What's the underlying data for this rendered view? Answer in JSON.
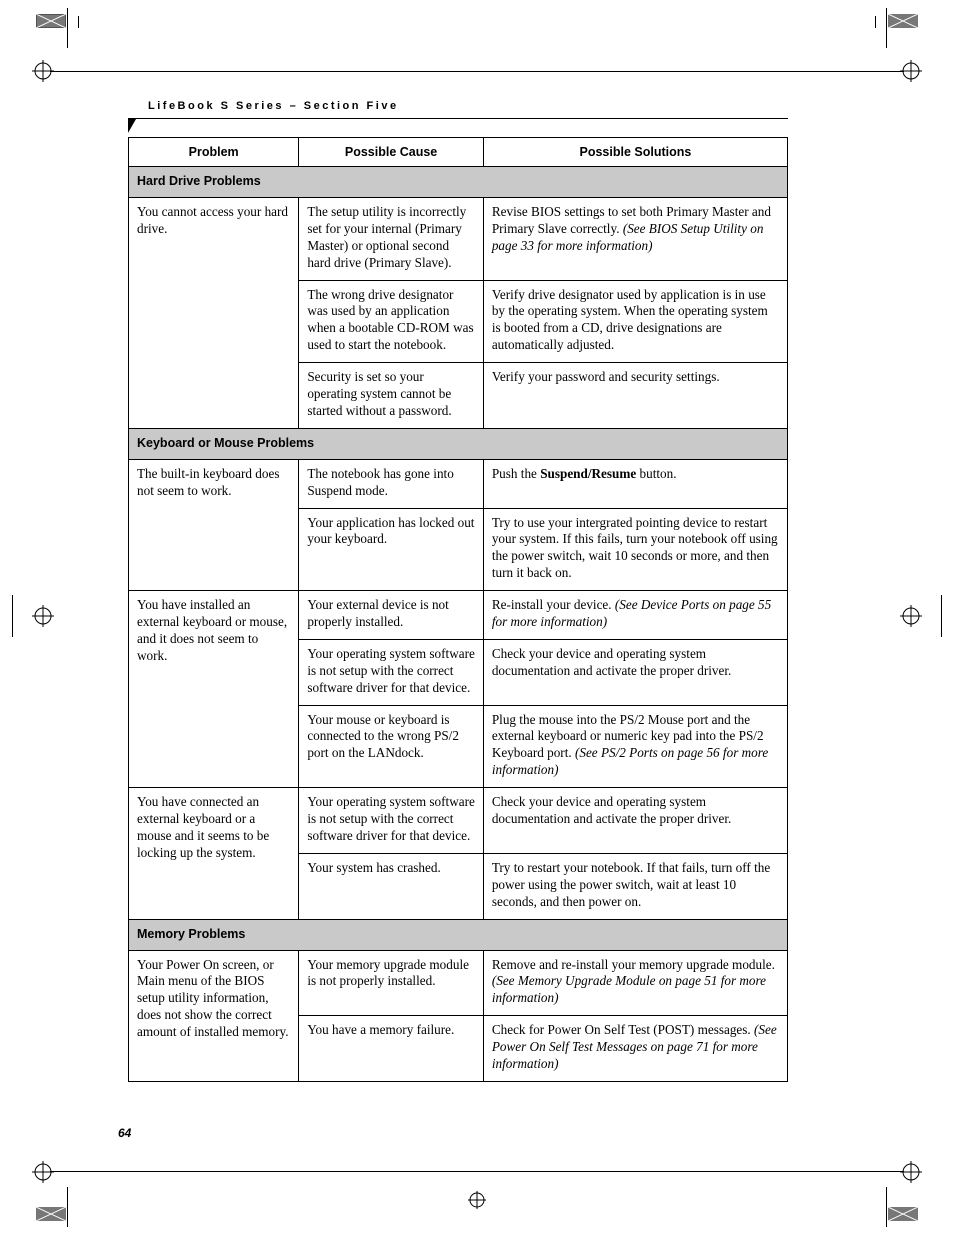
{
  "running_header": "LifeBook S Series – Section Five",
  "page_number": "64",
  "columns": {
    "problem": "Problem",
    "cause": "Possible Cause",
    "solution": "Possible Solutions"
  },
  "sections": [
    {
      "title": "Hard Drive Problems",
      "rows": [
        {
          "problem": "You cannot access your hard drive.",
          "items": [
            {
              "cause": "The setup utility is incorrectly set for your internal (Primary Master) or optional second hard drive (Primary Slave).",
              "solution_pre": "Revise BIOS settings to set both Primary Master and Primary Slave correctly. ",
              "solution_ital": "(See BIOS Setup Utility on page 33 for more information)"
            },
            {
              "cause": "The wrong drive designator was used by an application when a bootable CD-ROM was used to start the notebook.",
              "solution_pre": "Verify drive designator used by application is in use by the operating system. When the operating system is booted from a CD, drive designations are automatically adjusted.",
              "solution_ital": ""
            },
            {
              "cause": "Security is set so your operating system cannot be started without a password.",
              "solution_pre": "Verify your password and security settings.",
              "solution_ital": ""
            }
          ]
        }
      ]
    },
    {
      "title": "Keyboard or Mouse Problems",
      "rows": [
        {
          "problem": "The built-in keyboard does not seem to work.",
          "items": [
            {
              "cause": "The notebook has gone into Suspend mode.",
              "solution_pre": "Push the ",
              "solution_bold": "Suspend/Resume",
              "solution_post": " button."
            },
            {
              "cause": "Your application has locked out your keyboard.",
              "solution_pre": "Try to use your intergrated pointing device to restart your system. If this fails, turn your notebook off using the power switch, wait 10 seconds or more, and then turn it back on.",
              "solution_ital": ""
            }
          ]
        },
        {
          "problem": "You have installed an external keyboard or mouse, and it does not seem to work.",
          "items": [
            {
              "cause": "Your external device is not properly installed.",
              "solution_pre": "Re-install your device. ",
              "solution_ital": "(See Device Ports on page 55 for more information)"
            },
            {
              "cause": "Your operating system software is not setup with the correct software driver for that device.",
              "solution_pre": "Check your device and operating system documentation and activate the proper driver.",
              "solution_ital": ""
            },
            {
              "cause": "Your mouse or keyboard is connected to the wrong PS/2 port on the LANdock.",
              "solution_pre": "Plug the mouse into the PS/2 Mouse port and the external keyboard or numeric key pad into the PS/2 Keyboard port. ",
              "solution_ital": "(See PS/2 Ports on page 56 for more information)"
            }
          ]
        },
        {
          "problem": "You have connected an external keyboard or a mouse and it seems to be locking up the system.",
          "items": [
            {
              "cause": "Your operating system software is not setup with the correct software driver for that device.",
              "solution_pre": "Check your device and operating system documentation and activate the proper driver.",
              "solution_ital": ""
            },
            {
              "cause": "Your system has crashed.",
              "solution_pre": "Try to restart your notebook. If that fails, turn off the power using the power switch, wait at least 10 seconds, and then power on.",
              "solution_ital": ""
            }
          ]
        }
      ]
    },
    {
      "title": "Memory Problems",
      "rows": [
        {
          "problem": "Your Power On screen, or Main menu of the BIOS setup utility information, does not show the correct amount of installed memory.",
          "items": [
            {
              "cause": "Your memory upgrade module is not properly installed.",
              "solution_pre": "Remove and re-install your memory upgrade module. ",
              "solution_ital": "(See Memory Upgrade Module on page 51 for more information)"
            },
            {
              "cause": "You have a memory failure.",
              "solution_pre": "Check for Power On Self Test (POST) messages. ",
              "solution_ital": "(See Power On Self Test Messages on page 71 for more information)"
            }
          ]
        }
      ]
    }
  ]
}
